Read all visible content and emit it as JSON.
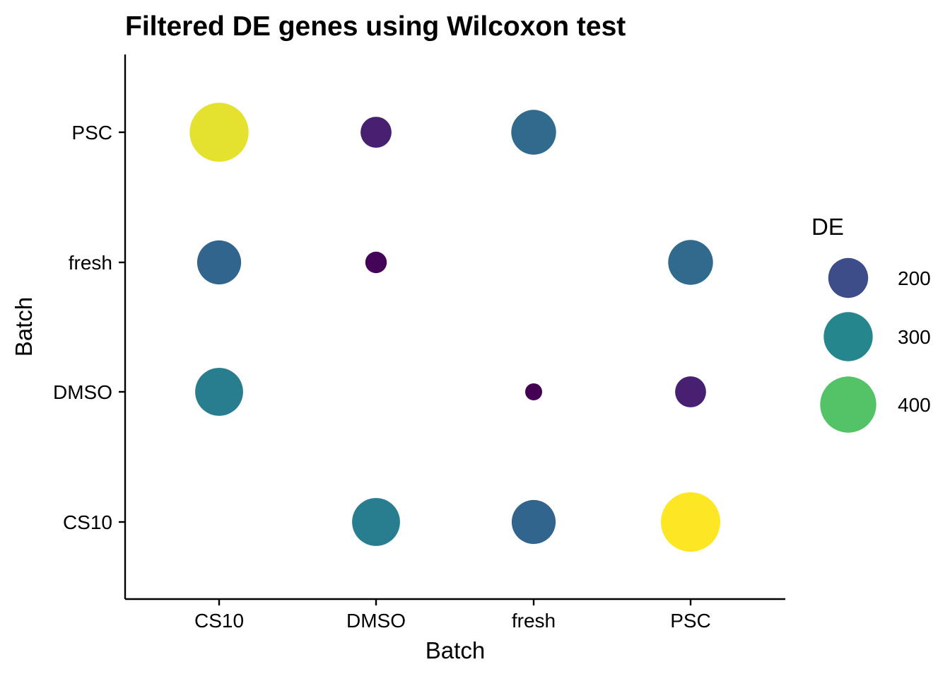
{
  "chart_data": {
    "type": "scatter",
    "title": "Filtered DE genes using Wilcoxon test",
    "xlabel": "Batch",
    "ylabel": "Batch",
    "x_categories": [
      "CS10",
      "DMSO",
      "fresh",
      "PSC"
    ],
    "y_categories": [
      "CS10",
      "DMSO",
      "fresh",
      "PSC"
    ],
    "grid": false,
    "size_range": [
      96,
      452
    ],
    "points": [
      {
        "x": "CS10",
        "y": "PSC",
        "de": 445
      },
      {
        "x": "DMSO",
        "y": "PSC",
        "de": 135
      },
      {
        "x": "fresh",
        "y": "PSC",
        "de": 250
      },
      {
        "x": "CS10",
        "y": "fresh",
        "de": 240
      },
      {
        "x": "DMSO",
        "y": "fresh",
        "de": 100
      },
      {
        "x": "PSC",
        "y": "fresh",
        "de": 250
      },
      {
        "x": "CS10",
        "y": "DMSO",
        "de": 285
      },
      {
        "x": "fresh",
        "y": "DMSO",
        "de": 96
      },
      {
        "x": "PSC",
        "y": "DMSO",
        "de": 135
      },
      {
        "x": "DMSO",
        "y": "CS10",
        "de": 285
      },
      {
        "x": "fresh",
        "y": "CS10",
        "de": 240
      },
      {
        "x": "PSC",
        "y": "CS10",
        "de": 452
      }
    ],
    "legend": {
      "title": "DE",
      "position": "right",
      "entries": [
        {
          "label": "200",
          "value": 200
        },
        {
          "label": "300",
          "value": 300
        },
        {
          "label": "400",
          "value": 400
        }
      ]
    }
  }
}
